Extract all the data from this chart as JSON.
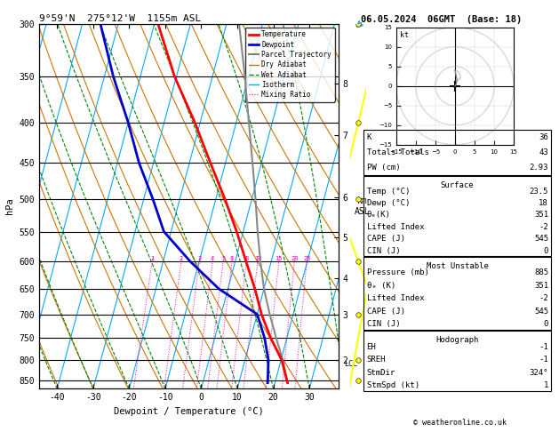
{
  "title_left": "9°59'N  275°12'W  1155m ASL",
  "title_right": "06.05.2024  06GMT  (Base: 18)",
  "xlabel": "Dewpoint / Temperature (°C)",
  "pressure_ticks": [
    300,
    350,
    400,
    450,
    500,
    550,
    600,
    650,
    700,
    750,
    800,
    850
  ],
  "pressure_min": 300,
  "pressure_max": 870,
  "temp_min": -45,
  "temp_max": 38,
  "skew_factor": 27,
  "temp_profile_pressure": [
    855,
    800,
    750,
    700,
    650,
    600,
    550,
    500,
    450,
    400,
    350,
    300
  ],
  "temp_profile_temp": [
    23.5,
    20.2,
    15.5,
    11.2,
    7.5,
    3.0,
    -1.8,
    -7.5,
    -14.2,
    -21.5,
    -30.5,
    -39.0
  ],
  "dewp_profile_pressure": [
    855,
    800,
    750,
    700,
    650,
    600,
    550,
    500,
    450,
    400,
    350,
    300
  ],
  "dewp_profile_dewp": [
    18.0,
    16.5,
    13.8,
    10.0,
    -2.5,
    -12.5,
    -22.0,
    -27.5,
    -34.0,
    -40.0,
    -47.5,
    -55.0
  ],
  "parcel_profile_pressure": [
    855,
    800,
    750,
    700,
    650,
    600,
    550,
    500,
    450,
    400,
    350,
    300
  ],
  "parcel_profile_temp": [
    23.5,
    20.5,
    17.0,
    13.5,
    10.0,
    7.0,
    4.0,
    1.0,
    -2.5,
    -6.5,
    -11.0,
    -16.5
  ],
  "lcl_pressure": 810,
  "mixing_ratios": [
    1,
    2,
    3,
    4,
    5,
    6,
    8,
    10,
    15,
    20,
    25
  ],
  "wet_adiabat_start_temps": [
    -40,
    -30,
    -20,
    -10,
    0,
    10,
    20,
    30,
    40
  ],
  "km_asl_km": [
    2,
    3,
    4,
    5,
    6,
    7,
    8
  ],
  "km_asl_hpa": [
    800,
    700,
    630,
    560,
    498,
    415,
    357
  ],
  "color_temperature": "#ff0000",
  "color_dewpoint": "#0000cc",
  "color_parcel": "#888888",
  "color_dry_adiabat": "#cc7700",
  "color_wet_adiabat": "#008800",
  "color_isotherm": "#00aaff",
  "color_mixing_ratio": "#ff00cc",
  "info_K": "36",
  "info_TT": "43",
  "info_PW": "2.93",
  "info_sfc_temp": "23.5",
  "info_sfc_dewp": "18",
  "info_sfc_theta_e": "351",
  "info_sfc_li": "-2",
  "info_sfc_cape": "545",
  "info_sfc_cin": "0",
  "info_mu_pres": "885",
  "info_mu_theta_e": "351",
  "info_mu_li": "-2",
  "info_mu_cape": "545",
  "info_mu_cin": "0",
  "info_eh": "-1",
  "info_sreh": "-1",
  "info_stmdir": "324°",
  "info_stmspd": "1"
}
